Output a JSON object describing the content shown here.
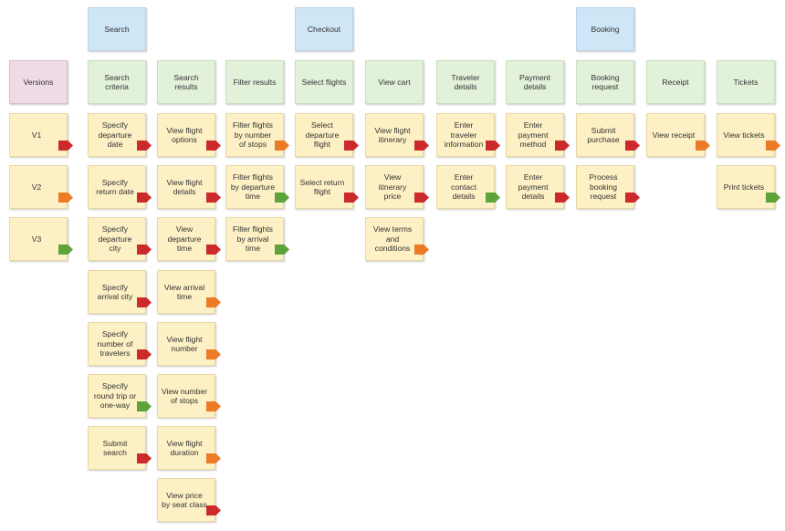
{
  "colors": {
    "red": "#cc2a2a",
    "orange": "#ec7a26",
    "green": "#5ea33a"
  },
  "activities": [
    {
      "label": "Search"
    },
    {
      "label": "Checkout"
    },
    {
      "label": "Booking"
    }
  ],
  "columns": [
    {
      "header": "Versions",
      "kind": "version",
      "cards": [
        {
          "text": "V1",
          "flag": "red"
        },
        {
          "text": "V2",
          "flag": "orange"
        },
        {
          "text": "V3",
          "flag": "green"
        }
      ]
    },
    {
      "header": "Search criteria",
      "kind": "task",
      "cards": [
        {
          "text": "Specify departure date",
          "flag": "red"
        },
        {
          "text": "Specify return date",
          "flag": "red"
        },
        {
          "text": "Specify departure city",
          "flag": "red"
        },
        {
          "text": "Specify arrival city",
          "flag": "red"
        },
        {
          "text": "Specify number of travelers",
          "flag": "red"
        },
        {
          "text": "Specify round trip or one-way",
          "flag": "green"
        },
        {
          "text": "Submit search",
          "flag": "red"
        }
      ]
    },
    {
      "header": "Search results",
      "kind": "task",
      "cards": [
        {
          "text": "View flight options",
          "flag": "red"
        },
        {
          "text": "View flight details",
          "flag": "red"
        },
        {
          "text": "View departure time",
          "flag": "red"
        },
        {
          "text": "View arrival time",
          "flag": "orange"
        },
        {
          "text": "View flight number",
          "flag": "orange"
        },
        {
          "text": "View number of stops",
          "flag": "orange"
        },
        {
          "text": "View flight duration",
          "flag": "orange"
        },
        {
          "text": "View price by seat class",
          "flag": "red"
        }
      ]
    },
    {
      "header": "Filter results",
      "kind": "task",
      "cards": [
        {
          "text": "Filter flights by number of stops",
          "flag": "orange"
        },
        {
          "text": "Filter flights by departure time",
          "flag": "green"
        },
        {
          "text": "Filter flights by arrival time",
          "flag": "green"
        }
      ]
    },
    {
      "header": "Select flights",
      "kind": "task",
      "cards": [
        {
          "text": "Select departure flight",
          "flag": "red"
        },
        {
          "text": "Select return flight",
          "flag": "red"
        }
      ]
    },
    {
      "header": "View cart",
      "kind": "task",
      "cards": [
        {
          "text": "View flight itinerary",
          "flag": "red"
        },
        {
          "text": "View itinerary price",
          "flag": "red"
        },
        {
          "text": "View terms and conditions",
          "flag": "orange"
        }
      ]
    },
    {
      "header": "Traveler details",
      "kind": "task",
      "cards": [
        {
          "text": "Enter traveler information",
          "flag": "red"
        },
        {
          "text": "Enter contact details",
          "flag": "green"
        }
      ]
    },
    {
      "header": "Payment details",
      "kind": "task",
      "cards": [
        {
          "text": "Enter payment method",
          "flag": "red"
        },
        {
          "text": "Enter payment details",
          "flag": "red"
        }
      ]
    },
    {
      "header": "Booking request",
      "kind": "task",
      "cards": [
        {
          "text": "Submit purchase",
          "flag": "red"
        },
        {
          "text": "Process booking request",
          "flag": "red"
        }
      ]
    },
    {
      "header": "Receipt",
      "kind": "task",
      "cards": [
        {
          "text": "View receipt",
          "flag": "orange"
        }
      ]
    },
    {
      "header": "Tickets",
      "kind": "task",
      "cards": [
        {
          "text": "View tickets",
          "flag": "orange"
        },
        {
          "text": "Print tickets",
          "flag": "green"
        }
      ]
    }
  ]
}
